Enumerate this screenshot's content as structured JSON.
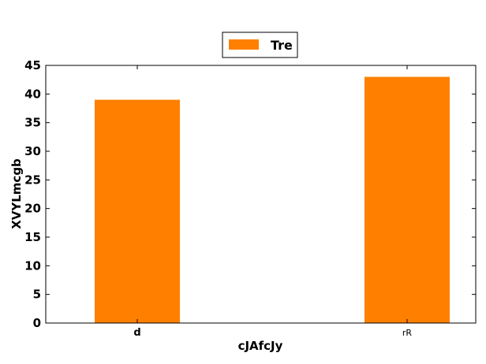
{
  "chart_data": {
    "type": "bar",
    "categories": [
      "d",
      "rR"
    ],
    "series": [
      {
        "name": "Tre",
        "values": [
          39,
          43
        ]
      }
    ],
    "xlabel": "cJAfcJy",
    "ylabel": "XVYLmcgb",
    "ylim": [
      0,
      45
    ],
    "yticks": [
      0,
      5,
      10,
      15,
      20,
      25,
      30,
      35,
      40,
      45
    ],
    "bar_color": "#ff8000",
    "grid": false,
    "legend_position": "top-center"
  }
}
